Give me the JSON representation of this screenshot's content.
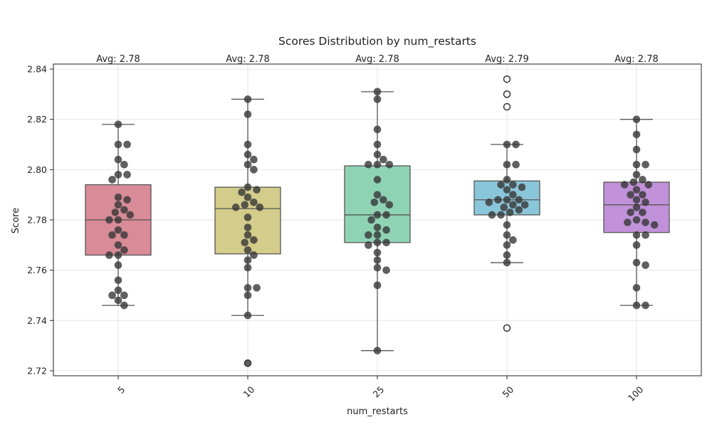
{
  "chart_data": {
    "type": "box",
    "title": "Scores Distribution by num_restarts",
    "xlabel": "num_restarts",
    "ylabel": "Score",
    "ylim": [
      2.718,
      2.842
    ],
    "yticks": [
      2.72,
      2.74,
      2.76,
      2.78,
      2.8,
      2.82,
      2.84
    ],
    "ytick_labels": [
      "2.72",
      "2.74",
      "2.76",
      "2.78",
      "2.80",
      "2.82",
      "2.84"
    ],
    "grid": true,
    "categories": [
      "5",
      "10",
      "25",
      "50",
      "100"
    ],
    "groups": [
      {
        "category": "5",
        "color": "#d98b97",
        "avg_label": "Avg: 2.78",
        "q1": 2.766,
        "median": 2.78,
        "q3": 2.794,
        "whisker_low": 2.746,
        "whisker_high": 2.818,
        "outliers": [],
        "points": [
          2.818,
          2.81,
          2.81,
          2.804,
          2.802,
          2.798,
          2.798,
          2.796,
          2.789,
          2.788,
          2.786,
          2.784,
          2.783,
          2.782,
          2.78,
          2.78,
          2.776,
          2.774,
          2.774,
          2.77,
          2.768,
          2.766,
          2.766,
          2.762,
          2.756,
          2.752,
          2.75,
          2.75,
          2.748,
          2.746
        ]
      },
      {
        "category": "10",
        "color": "#d4cc8a",
        "avg_label": "Avg: 2.78",
        "q1": 2.7665,
        "median": 2.7845,
        "q3": 2.793,
        "whisker_low": 2.742,
        "whisker_high": 2.828,
        "outliers": [
          2.723
        ],
        "points": [
          2.828,
          2.822,
          2.81,
          2.806,
          2.804,
          2.802,
          2.8,
          2.793,
          2.792,
          2.791,
          2.789,
          2.787,
          2.786,
          2.785,
          2.785,
          2.781,
          2.777,
          2.774,
          2.772,
          2.771,
          2.768,
          2.766,
          2.764,
          2.761,
          2.753,
          2.753,
          2.75,
          2.742,
          2.723
        ]
      },
      {
        "category": "25",
        "color": "#8fd3b5",
        "avg_label": "Avg: 2.78",
        "q1": 2.771,
        "median": 2.782,
        "q3": 2.8015,
        "whisker_low": 2.728,
        "whisker_high": 2.831,
        "outliers": [],
        "points": [
          2.831,
          2.828,
          2.816,
          2.81,
          2.806,
          2.804,
          2.802,
          2.802,
          2.802,
          2.796,
          2.79,
          2.788,
          2.787,
          2.786,
          2.782,
          2.782,
          2.78,
          2.777,
          2.776,
          2.774,
          2.774,
          2.771,
          2.771,
          2.77,
          2.767,
          2.764,
          2.761,
          2.76,
          2.754,
          2.728
        ]
      },
      {
        "category": "50",
        "color": "#8ac6d9",
        "avg_label": "Avg: 2.79",
        "q1": 2.782,
        "median": 2.788,
        "q3": 2.7955,
        "whisker_low": 2.763,
        "whisker_high": 2.81,
        "outliers": [
          2.836,
          2.83,
          2.825,
          2.737
        ],
        "points": [
          2.81,
          2.81,
          2.802,
          2.802,
          2.796,
          2.794,
          2.794,
          2.793,
          2.792,
          2.79,
          2.788,
          2.788,
          2.788,
          2.787,
          2.786,
          2.786,
          2.785,
          2.784,
          2.783,
          2.782,
          2.782,
          2.778,
          2.774,
          2.772,
          2.77,
          2.766,
          2.763
        ]
      },
      {
        "category": "100",
        "color": "#c191d9",
        "avg_label": "Avg: 2.78",
        "q1": 2.775,
        "median": 2.786,
        "q3": 2.795,
        "whisker_low": 2.746,
        "whisker_high": 2.82,
        "outliers": [],
        "points": [
          2.82,
          2.814,
          2.808,
          2.802,
          2.802,
          2.798,
          2.796,
          2.795,
          2.794,
          2.794,
          2.792,
          2.79,
          2.79,
          2.788,
          2.787,
          2.785,
          2.783,
          2.783,
          2.78,
          2.779,
          2.779,
          2.778,
          2.774,
          2.774,
          2.77,
          2.763,
          2.762,
          2.753,
          2.746,
          2.746
        ]
      }
    ]
  }
}
